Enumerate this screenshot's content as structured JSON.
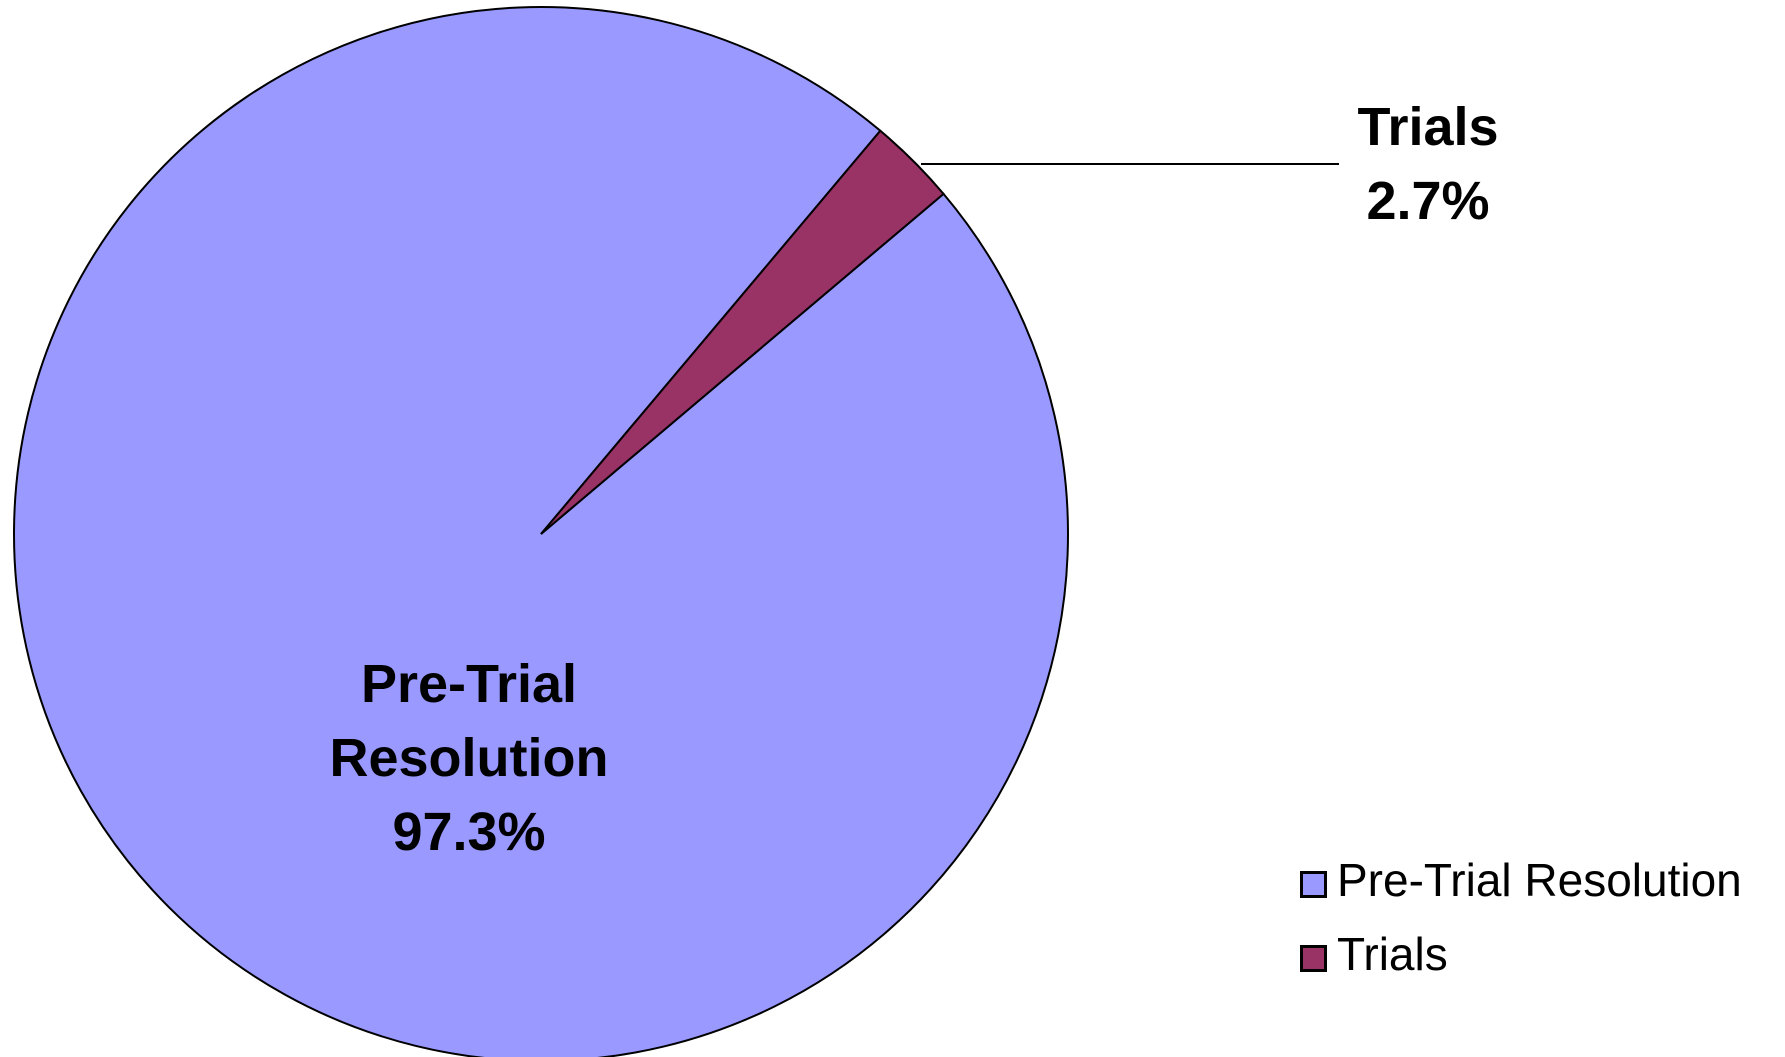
{
  "chart_data": {
    "type": "pie",
    "categories": [
      "Pre-Trial Resolution",
      "Trials"
    ],
    "values": [
      97.3,
      2.7
    ],
    "value_labels": [
      "97.3%",
      "2.7%"
    ],
    "colors": [
      "#9999ff",
      "#993366"
    ],
    "legend": "right"
  }
}
